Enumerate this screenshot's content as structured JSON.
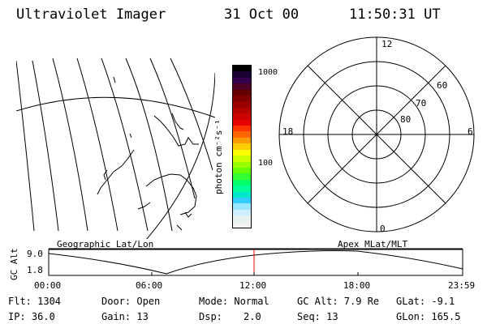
{
  "header": {
    "title": "Ultraviolet Imager",
    "date": "31 Oct 00",
    "time": "11:50:31 UT"
  },
  "left_panel": {
    "label": "Geographic Lat/Lon"
  },
  "colorbar": {
    "unit_label": "photon cm⁻²s⁻¹",
    "tick_labels": [
      "1000",
      "100"
    ],
    "colors": [
      "#000000",
      "#1a0033",
      "#33004d",
      "#4d0026",
      "#660000",
      "#800000",
      "#990000",
      "#b30000",
      "#cc0000",
      "#e60000",
      "#ff3300",
      "#ff6600",
      "#ff9900",
      "#ffcc00",
      "#ffff00",
      "#ccff00",
      "#99ff00",
      "#66ff00",
      "#33ff33",
      "#00ff66",
      "#00ff99",
      "#00e6cc",
      "#33ccff",
      "#99e6ff",
      "#cceeff",
      "#e6f2f2",
      "#f2f2f2"
    ]
  },
  "polar_plot": {
    "label": "Apex MLat/MLT",
    "mlt_labels": {
      "top": "12",
      "left": "18",
      "right": "6",
      "bottom": "0"
    },
    "mlat_labels": [
      "60",
      "70",
      "80"
    ]
  },
  "altitude_plot": {
    "y_axis_label": "GC Alt",
    "y_ticks": [
      "9.0",
      "1.8"
    ],
    "x_ticks": [
      "00:00",
      "06:00",
      "12:00",
      "18:00",
      "23:59"
    ],
    "current_marker_color": "#ff0000"
  },
  "info": {
    "flt": "Flt: 1304",
    "door": "Door: Open",
    "mode": "Mode: Normal",
    "gc_alt": "GC Alt: 7.9 Re",
    "glat": "GLat: -9.1",
    "ip": "IP: 36.0",
    "gain": "Gain: 13",
    "dsp_label": "Dsp:",
    "dsp_value": "2.0",
    "seq": "Seq: 13",
    "glon": "GLon: 165.5"
  }
}
